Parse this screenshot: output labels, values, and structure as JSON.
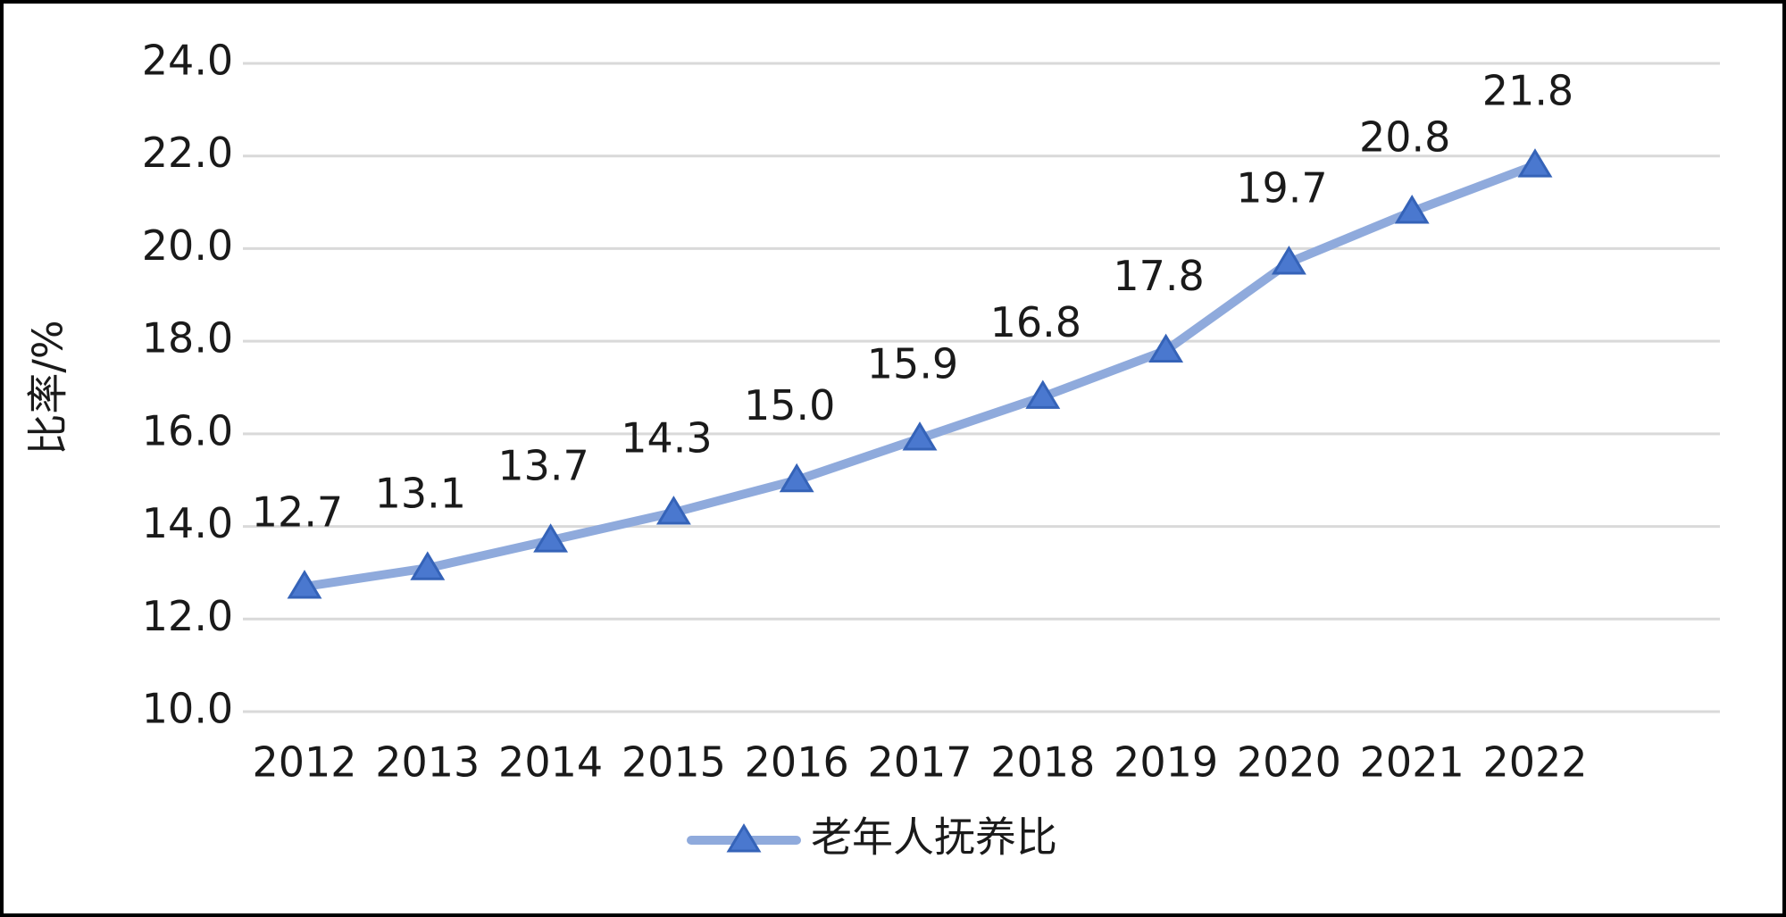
{
  "chart_data": {
    "type": "line",
    "y_label": "比率/%",
    "categories": [
      "2012",
      "2013",
      "2014",
      "2015",
      "2016",
      "2017",
      "2018",
      "2019",
      "2020",
      "2021",
      "2022"
    ],
    "series": [
      {
        "name": "老年人抚养比",
        "color": "#8faadc",
        "marker_color": "#4a78cf",
        "values": [
          12.7,
          13.1,
          13.7,
          14.3,
          15,
          15.9,
          16.8,
          17.8,
          19.7,
          20.8,
          21.8
        ],
        "value_labels": [
          "12.7",
          "13.1",
          "13.7",
          "14.3",
          "15.0",
          "15.9",
          "16.8",
          "17.8",
          "19.7",
          "20.8",
          "21.8"
        ]
      }
    ],
    "ylim": [
      10,
      24
    ],
    "yticks": [
      {
        "value": 10,
        "label": "10.0"
      },
      {
        "value": 12,
        "label": "12.0"
      },
      {
        "value": 14,
        "label": "14.0"
      },
      {
        "value": 16,
        "label": "16.0"
      },
      {
        "value": 18,
        "label": "18.0"
      },
      {
        "value": 20,
        "label": "20.0"
      },
      {
        "value": 22,
        "label": "22.0"
      },
      {
        "value": 24,
        "label": "24.0"
      }
    ],
    "grid": true,
    "legend": "bottom"
  }
}
